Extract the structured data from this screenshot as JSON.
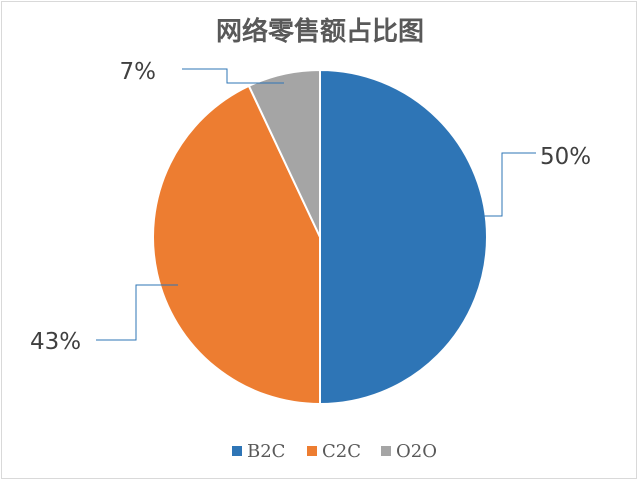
{
  "chart_data": {
    "type": "pie",
    "title": "网络零售额占比图",
    "categories": [
      "B2C",
      "C2C",
      "O2O"
    ],
    "values": [
      50,
      43,
      7
    ],
    "data_labels": [
      "50%",
      "43%",
      "7%"
    ],
    "colors": [
      "#2e75b6",
      "#ed7d31",
      "#a5a5a5"
    ],
    "legend_position": "bottom",
    "start_angle": "12 o'clock, clockwise"
  }
}
